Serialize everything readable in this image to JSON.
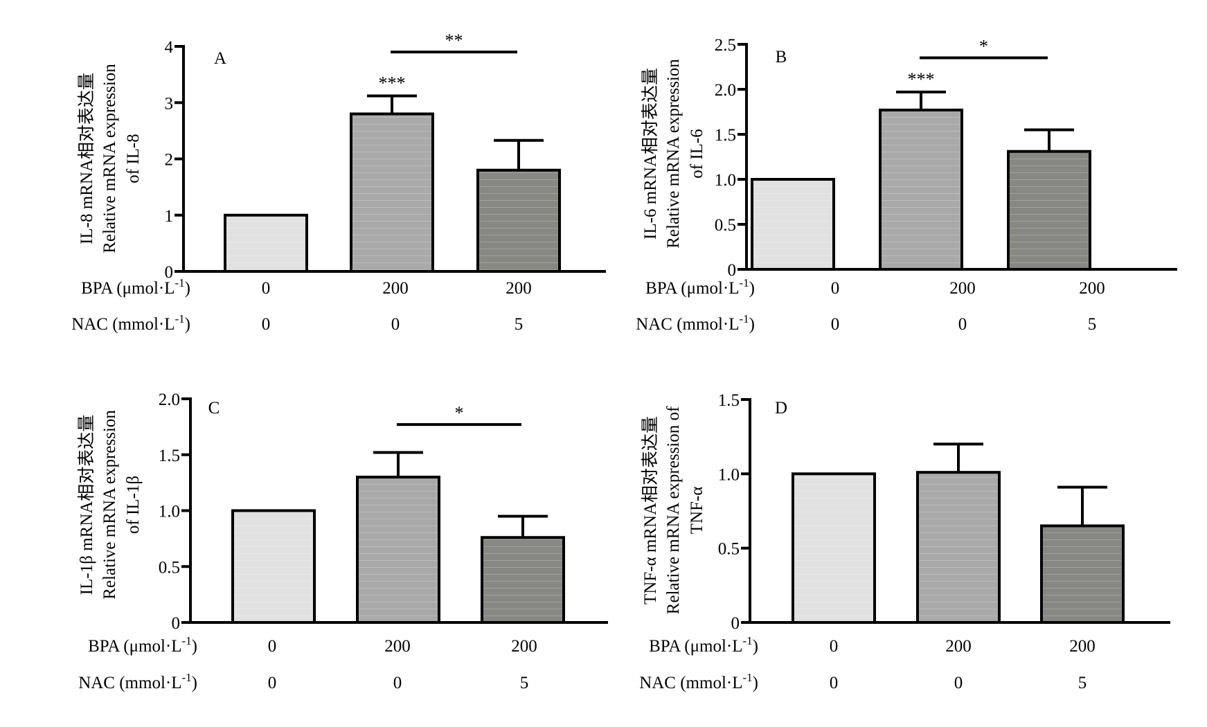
{
  "chart_data": [
    {
      "type": "bar",
      "panel_label": "A",
      "ylabel_lines": [
        "IL-8 mRNA相对表达量",
        "Relative mRNA expression",
        "of IL-8"
      ],
      "ylim": [
        0,
        4
      ],
      "yticks": [
        "0",
        "1",
        "2",
        "3",
        "4"
      ],
      "row_labels": [
        "BPA (μmol·L",
        "NAC (mmol·L"
      ],
      "row_label_sup": "-1",
      "row_label_close": ")",
      "categories_bpa": [
        "0",
        "200",
        "200"
      ],
      "categories_nac": [
        "0",
        "0",
        "5"
      ],
      "values": [
        1.0,
        2.8,
        1.8
      ],
      "errors": [
        0,
        0.32,
        0.53
      ],
      "bar_colors": [
        "#e1e1e1",
        "#a9a9a9",
        "#878783"
      ],
      "bar_significance": [
        "",
        "***",
        ""
      ],
      "bracket": {
        "from": 1,
        "to": 2,
        "label": "**",
        "y": 3.9
      }
    },
    {
      "type": "bar",
      "panel_label": "B",
      "ylabel_lines": [
        "IL-6 mRNA相对表达量",
        "Relative mRNA expression",
        "of IL-6"
      ],
      "ylim": [
        0,
        2.5
      ],
      "yticks": [
        "0",
        "0.5",
        "1.0",
        "1.5",
        "2.0",
        "2.5"
      ],
      "row_labels": [
        "BPA (μmol·L",
        "NAC (mmol·L"
      ],
      "row_label_sup": "-1",
      "row_label_close": ")",
      "categories_bpa": [
        "0",
        "200",
        "200"
      ],
      "categories_nac": [
        "0",
        "0",
        "5"
      ],
      "values": [
        1.0,
        1.77,
        1.31
      ],
      "errors": [
        0,
        0.2,
        0.24
      ],
      "bar_colors": [
        "#e1e1e1",
        "#a9a9a9",
        "#878783"
      ],
      "bar_significance": [
        "",
        "***",
        ""
      ],
      "bracket": {
        "from": 1,
        "to": 2,
        "label": "*",
        "y": 2.35
      }
    },
    {
      "type": "bar",
      "panel_label": "C",
      "ylabel_lines": [
        "IL-1β mRNA相对表达量",
        "Relative mRNA expression",
        "of IL-1β"
      ],
      "ylim": [
        0,
        2.0
      ],
      "yticks": [
        "0",
        "0.5",
        "1.0",
        "1.5",
        "2.0"
      ],
      "row_labels": [
        "BPA (μmol·L",
        "NAC (mmol·L"
      ],
      "row_label_sup": "-1",
      "row_label_close": ")",
      "categories_bpa": [
        "0",
        "200",
        "200"
      ],
      "categories_nac": [
        "0",
        "0",
        "5"
      ],
      "values": [
        1.0,
        1.3,
        0.76
      ],
      "errors": [
        0,
        0.22,
        0.19
      ],
      "bar_colors": [
        "#e1e1e1",
        "#a9a9a9",
        "#878783"
      ],
      "bar_significance": [
        "",
        "",
        ""
      ],
      "bracket": {
        "from": 1,
        "to": 2,
        "label": "*",
        "y": 1.77
      }
    },
    {
      "type": "bar",
      "panel_label": "D",
      "ylabel_lines": [
        "TNF-α mRNA相对表达量",
        "Relative mRNA expression of",
        "TNF-α"
      ],
      "ylim": [
        0,
        1.5
      ],
      "yticks": [
        "0",
        "0.5",
        "1.0",
        "1.5"
      ],
      "row_labels": [
        "BPA (μmol·L",
        "NAC (mmol·L"
      ],
      "row_label_sup": "-1",
      "row_label_close": ")",
      "categories_bpa": [
        "0",
        "200",
        "200"
      ],
      "categories_nac": [
        "0",
        "0",
        "5"
      ],
      "values": [
        1.0,
        1.01,
        0.65
      ],
      "errors": [
        0,
        0.19,
        0.26
      ],
      "bar_colors": [
        "#e1e1e1",
        "#a9a9a9",
        "#878783"
      ],
      "bar_significance": [
        "",
        "",
        ""
      ],
      "bracket": null
    }
  ]
}
